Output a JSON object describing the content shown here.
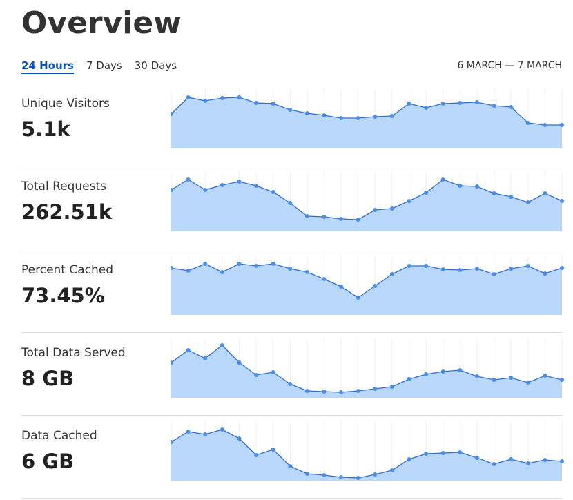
{
  "header": {
    "title": "Overview",
    "tabs": [
      "24 Hours",
      "7 Days",
      "30 Days"
    ],
    "active_tab": 0,
    "date_range": "6 MARCH — 7 MARCH"
  },
  "metrics": [
    {
      "label": "Unique Visitors",
      "value": "5.1k",
      "points": [
        50,
        74,
        69,
        73,
        74,
        66,
        65,
        56,
        51,
        48,
        44,
        44,
        46,
        47,
        65,
        59,
        65,
        66,
        67,
        62,
        60,
        37,
        34,
        34
      ]
    },
    {
      "label": "Total Requests",
      "value": "262.51k",
      "points": [
        60,
        75,
        60,
        67,
        72,
        66,
        57,
        41,
        22,
        21,
        18,
        17,
        31,
        33,
        44,
        56,
        75,
        66,
        65,
        55,
        50,
        42,
        55,
        44
      ]
    },
    {
      "label": "Percent Cached",
      "value": "73.45%",
      "points": [
        68,
        64,
        74,
        62,
        74,
        71,
        74,
        67,
        62,
        52,
        41,
        25,
        42,
        59,
        71,
        71,
        66,
        65,
        67,
        59,
        67,
        71,
        60,
        68
      ]
    },
    {
      "label": "Total Data Served",
      "value": "8 GB",
      "points": [
        51,
        69,
        57,
        76,
        51,
        33,
        37,
        20,
        10,
        9,
        8,
        10,
        13,
        16,
        27,
        34,
        38,
        40,
        31,
        26,
        29,
        22,
        32,
        26
      ]
    },
    {
      "label": "Data Cached",
      "value": "6 GB",
      "points": [
        56,
        71,
        67,
        74,
        61,
        37,
        45,
        21,
        10,
        8,
        5,
        4,
        9,
        15,
        31,
        39,
        40,
        41,
        33,
        24,
        31,
        25,
        30,
        28
      ]
    }
  ]
}
